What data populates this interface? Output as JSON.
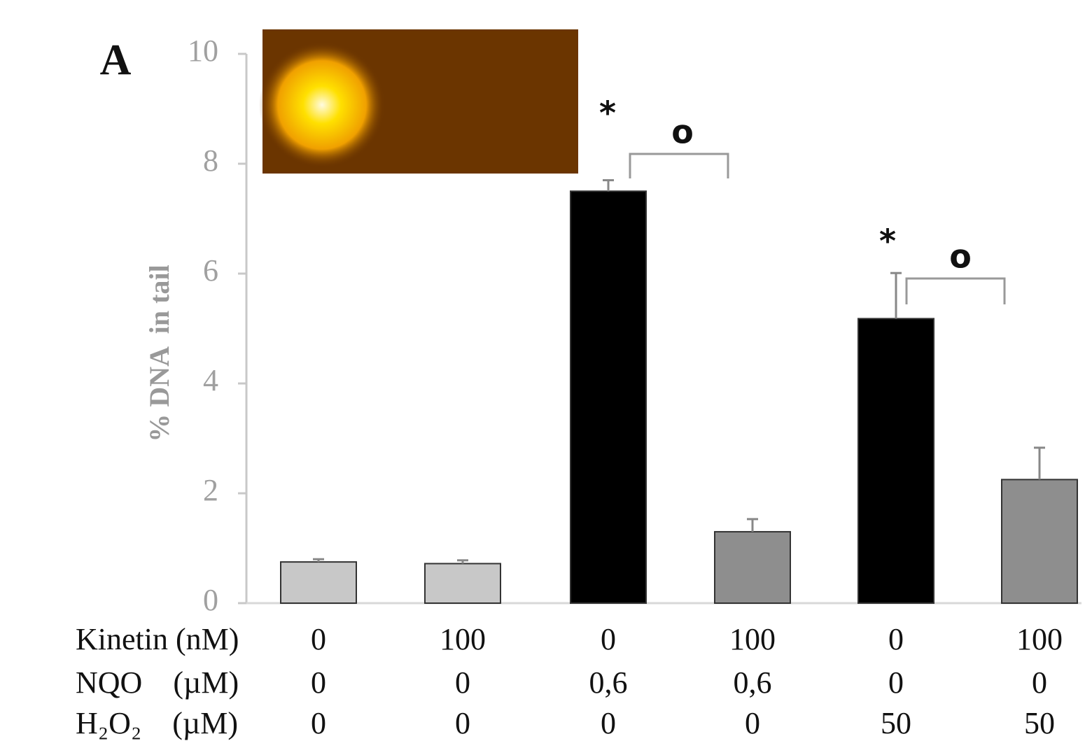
{
  "chart_data": {
    "type": "bar",
    "panel": "A",
    "ylabel": "% DNA  in tail",
    "values": [
      0.75,
      0.72,
      7.5,
      1.3,
      5.18,
      2.25
    ],
    "errors": [
      0.05,
      0.06,
      0.2,
      0.23,
      0.83,
      0.58
    ],
    "colors": [
      "#c8c8c8",
      "#c8c8c8",
      "#000000",
      "#8e8e8e",
      "#000000",
      "#8e8e8e"
    ],
    "ylim": [
      0,
      10
    ],
    "yticks": [
      0,
      2,
      4,
      6,
      8,
      10
    ],
    "annotations": [
      "*",
      "o",
      "*",
      "o"
    ],
    "conditions": [
      {
        "label": "Kinetin (nM)",
        "values": [
          "0",
          "100",
          "0",
          "100",
          "0",
          "100"
        ]
      },
      {
        "label": "NQO    (µM)",
        "values": [
          "0",
          "0",
          "0,6",
          "0,6",
          "0",
          "0"
        ]
      },
      {
        "label": "H₂O₂    (µM)",
        "values": [
          "0",
          "0",
          "0",
          "0",
          "50",
          "50"
        ]
      }
    ]
  }
}
